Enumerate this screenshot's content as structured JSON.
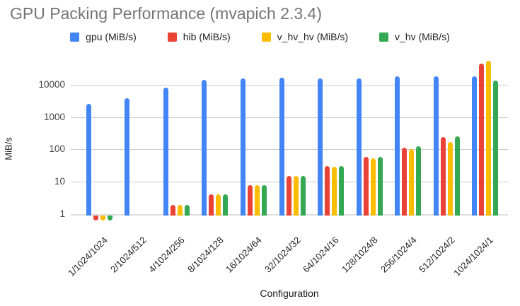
{
  "chart_data": {
    "type": "bar",
    "title": "GPU Packing Performance (mvapich 2.3.4)",
    "xlabel": "Configuration",
    "ylabel": "MiB/s",
    "y_scale": "log",
    "y_ticks": [
      1,
      10,
      100,
      1000,
      10000
    ],
    "ylim": [
      0.5,
      60000
    ],
    "grid": true,
    "legend_position": "top",
    "gridline_color": "#cccccc",
    "baseline_color": "#dedede",
    "title_color": "#757575",
    "categories": [
      "1/1024/1024",
      "2/1024/512",
      "4/1024/256",
      "8/1024/128",
      "16/1024/64",
      "32/1024/32",
      "64/1024/16",
      "128/1024/8",
      "256/1024/4",
      "512/1024/2",
      "1024/1024/1"
    ],
    "series": [
      {
        "name": "gpu (MiB/s)",
        "color": "#4285F4",
        "values": [
          2600,
          3800,
          8000,
          14000,
          15400,
          16500,
          15800,
          15800,
          17800,
          17800,
          18500
        ]
      },
      {
        "name": "hib (MiB/s)",
        "color": "#EA4335",
        "values": [
          0.7,
          1,
          1.9,
          4,
          8,
          15,
          30,
          60,
          115,
          240,
          45000
        ]
      },
      {
        "name": "v_hv_hv (MiB/s)",
        "color": "#FBBC04",
        "values": [
          0.7,
          1,
          1.9,
          4,
          7.8,
          15,
          29,
          52,
          100,
          165,
          55000
        ]
      },
      {
        "name": "v_hv (MiB/s)",
        "color": "#34A853",
        "values": [
          0.7,
          1,
          1.9,
          4,
          8,
          15,
          30,
          60,
          122,
          250,
          13500
        ]
      }
    ]
  }
}
